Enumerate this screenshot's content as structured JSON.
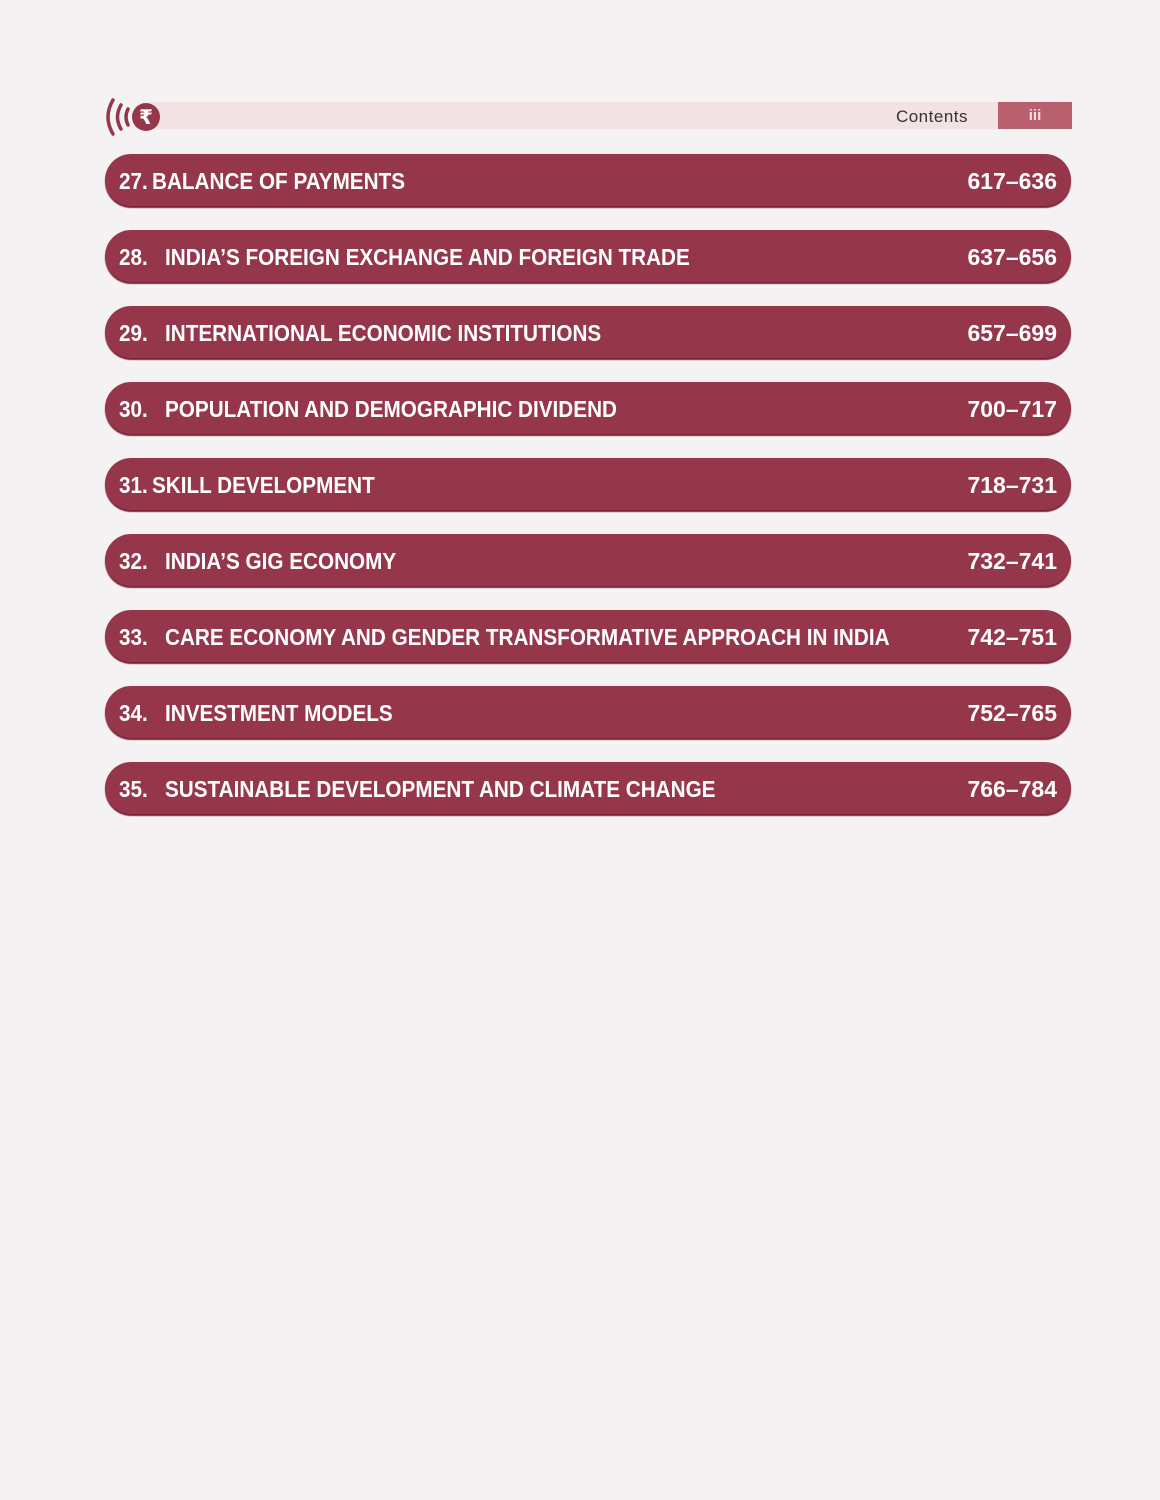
{
  "header": {
    "title": "Contents",
    "page_number": "iii",
    "logo_icon": "rupee-signal-icon"
  },
  "colors": {
    "bar": "#96364a",
    "header_band": "#f2e2e4",
    "page_box": "#b8606e"
  },
  "entries": [
    {
      "number": "27.",
      "title": "BALANCE OF PAYMENTS",
      "pages": "617–636"
    },
    {
      "number": "28.",
      "title": "INDIA’S FOREIGN EXCHANGE AND FOREIGN TRADE",
      "pages": "637–656"
    },
    {
      "number": "29.",
      "title": "INTERNATIONAL ECONOMIC INSTITUTIONS",
      "pages": "657–699"
    },
    {
      "number": "30.",
      "title": "POPULATION AND DEMOGRAPHIC DIVIDEND",
      "pages": "700–717"
    },
    {
      "number": "31.",
      "title": "SKILL DEVELOPMENT",
      "pages": "718–731"
    },
    {
      "number": "32.",
      "title": "INDIA’S GIG ECONOMY",
      "pages": "732–741"
    },
    {
      "number": "33.",
      "title": "CARE ECONOMY AND GENDER TRANSFORMATIVE APPROACH IN INDIA",
      "pages": "742–751"
    },
    {
      "number": "34.",
      "title": "INVESTMENT MODELS",
      "pages": "752–765"
    },
    {
      "number": "35.",
      "title": "SUSTAINABLE DEVELOPMENT AND CLIMATE CHANGE",
      "pages": "766–784"
    }
  ]
}
